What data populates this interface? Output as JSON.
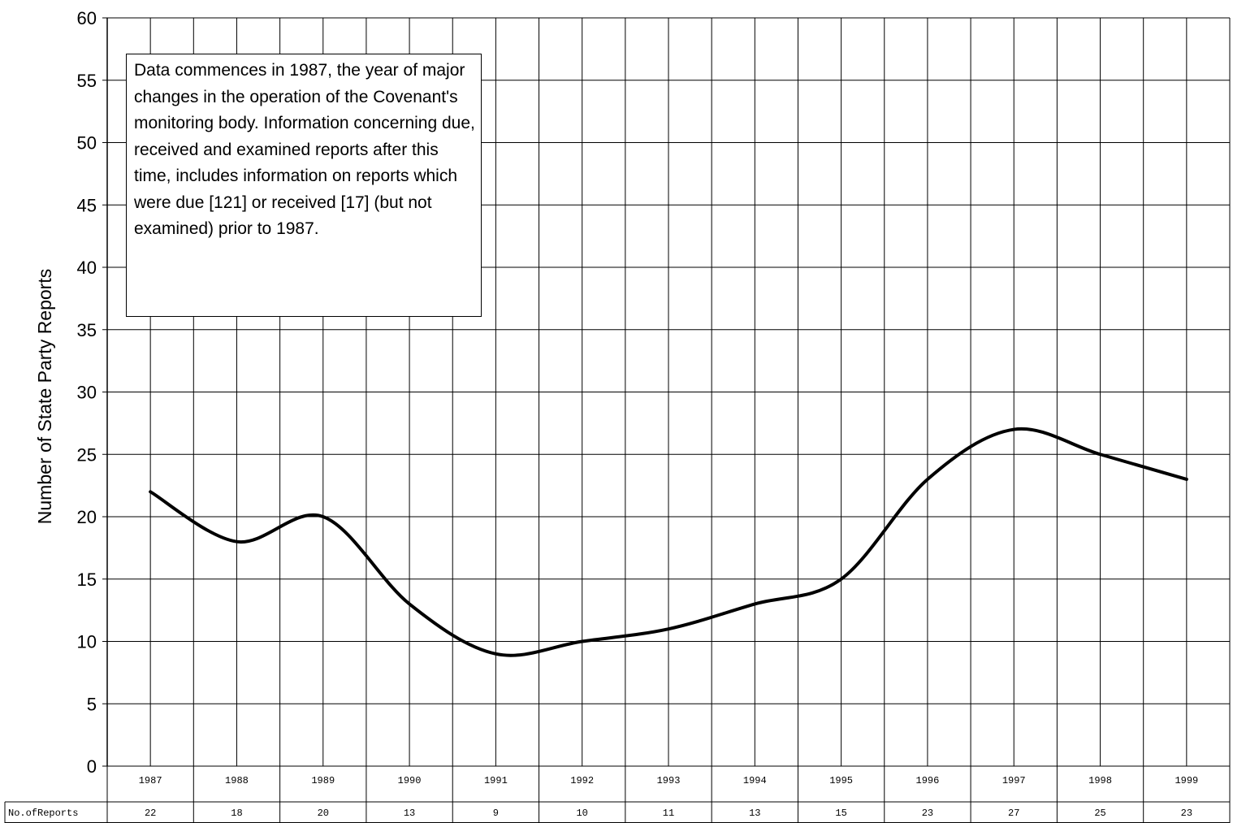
{
  "chart_data": {
    "type": "line",
    "title": "",
    "xlabel": "",
    "ylabel": "Number of State Party Reports",
    "ylim": [
      0,
      60
    ],
    "yticks": [
      0,
      5,
      10,
      15,
      20,
      25,
      30,
      35,
      40,
      45,
      50,
      55,
      60
    ],
    "grid": true,
    "legend": "none",
    "line_color": "#000000",
    "categories": [
      "1987",
      "1988",
      "1989",
      "1990",
      "1991",
      "1992",
      "1993",
      "1994",
      "1995",
      "1996",
      "1997",
      "1998",
      "1999"
    ],
    "series": [
      {
        "values": [
          22,
          18,
          20,
          13,
          9,
          10,
          11,
          13,
          15,
          23,
          27,
          25,
          23
        ]
      }
    ],
    "table": {
      "row_label": "No.ofReports",
      "values": [
        "22",
        "18",
        "20",
        "13",
        "9",
        "10",
        "11",
        "13",
        "15",
        "23",
        "27",
        "25",
        "23"
      ]
    },
    "annotation": "Data commences in 1987, the year of major changes in the operation of the Covenant's monitoring body. Information concerning due, received and examined reports after this time, includes information on reports which were due [121] or received [17] (but not examined) prior to 1987."
  }
}
